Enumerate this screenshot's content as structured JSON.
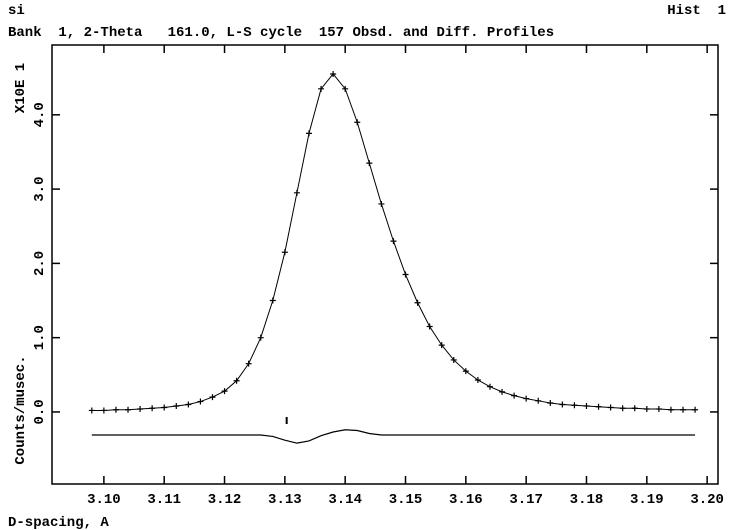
{
  "chart_data": {
    "type": "line",
    "title": "si",
    "hist_label": "Hist  1",
    "subtitle": "Bank  1, 2-Theta   161.0, L-S cycle  157 Obsd. and Diff. Profiles",
    "y_scale_label": "X10E 1",
    "xlabel": "D-spacing, A",
    "ylabel": "Counts/musec.",
    "color": "#000000",
    "xlim": [
      3.0914,
      3.2018
    ],
    "ylim": [
      -0.97,
      4.94
    ],
    "xticks": [
      {
        "value": 3.1,
        "label": "3.10"
      },
      {
        "value": 3.11,
        "label": "3.11"
      },
      {
        "value": 3.12,
        "label": "3.12"
      },
      {
        "value": 3.13,
        "label": "3.13"
      },
      {
        "value": 3.14,
        "label": "3.14"
      },
      {
        "value": 3.15,
        "label": "3.15"
      },
      {
        "value": 3.16,
        "label": "3.16"
      },
      {
        "value": 3.17,
        "label": "3.17"
      },
      {
        "value": 3.18,
        "label": "3.18"
      },
      {
        "value": 3.19,
        "label": "3.19"
      },
      {
        "value": 3.2,
        "label": "3.20"
      }
    ],
    "yticks": [
      {
        "value": 0,
        "label": "0.0"
      },
      {
        "value": 1,
        "label": "1.0"
      },
      {
        "value": 2,
        "label": "2.0"
      },
      {
        "value": 3,
        "label": "3.0"
      },
      {
        "value": 4,
        "label": "4.0"
      }
    ],
    "x": [
      3.098,
      3.1,
      3.102,
      3.104,
      3.106,
      3.108,
      3.11,
      3.112,
      3.114,
      3.116,
      3.118,
      3.12,
      3.122,
      3.124,
      3.126,
      3.128,
      3.13,
      3.132,
      3.134,
      3.136,
      3.138,
      3.14,
      3.142,
      3.144,
      3.146,
      3.148,
      3.15,
      3.152,
      3.154,
      3.156,
      3.158,
      3.16,
      3.162,
      3.164,
      3.166,
      3.168,
      3.17,
      3.172,
      3.174,
      3.176,
      3.178,
      3.18,
      3.182,
      3.184,
      3.186,
      3.188,
      3.19,
      3.192,
      3.194,
      3.196,
      3.198
    ],
    "observed": [
      0.02,
      0.02,
      0.03,
      0.03,
      0.04,
      0.05,
      0.06,
      0.08,
      0.1,
      0.14,
      0.2,
      0.28,
      0.42,
      0.65,
      1.0,
      1.5,
      2.15,
      2.95,
      3.75,
      4.35,
      4.55,
      4.35,
      3.9,
      3.35,
      2.8,
      2.3,
      1.85,
      1.47,
      1.15,
      0.9,
      0.7,
      0.55,
      0.43,
      0.34,
      0.27,
      0.22,
      0.18,
      0.15,
      0.12,
      0.1,
      0.09,
      0.08,
      0.07,
      0.06,
      0.05,
      0.05,
      0.04,
      0.04,
      0.03,
      0.03,
      0.03
    ],
    "calculated": [
      0.02,
      0.02,
      0.03,
      0.03,
      0.04,
      0.05,
      0.06,
      0.08,
      0.1,
      0.14,
      0.2,
      0.28,
      0.42,
      0.65,
      1.0,
      1.5,
      2.15,
      2.95,
      3.75,
      4.35,
      4.55,
      4.35,
      3.9,
      3.35,
      2.8,
      2.3,
      1.85,
      1.47,
      1.15,
      0.9,
      0.7,
      0.55,
      0.43,
      0.34,
      0.27,
      0.22,
      0.18,
      0.15,
      0.12,
      0.1,
      0.09,
      0.08,
      0.07,
      0.06,
      0.05,
      0.05,
      0.04,
      0.04,
      0.03,
      0.03,
      0.03
    ],
    "difference": [
      -0.31,
      -0.31,
      -0.31,
      -0.31,
      -0.31,
      -0.31,
      -0.31,
      -0.31,
      -0.31,
      -0.31,
      -0.31,
      -0.31,
      -0.31,
      -0.31,
      -0.31,
      -0.33,
      -0.38,
      -0.42,
      -0.39,
      -0.32,
      -0.27,
      -0.24,
      -0.25,
      -0.29,
      -0.31,
      -0.31,
      -0.31,
      -0.31,
      -0.31,
      -0.31,
      -0.31,
      -0.31,
      -0.31,
      -0.31,
      -0.31,
      -0.31,
      -0.31,
      -0.31,
      -0.31,
      -0.31,
      -0.31,
      -0.31,
      -0.31,
      -0.31,
      -0.31,
      -0.31,
      -0.31,
      -0.31,
      -0.31,
      -0.31,
      -0.31
    ],
    "reflection_x": [
      3.1303
    ]
  }
}
